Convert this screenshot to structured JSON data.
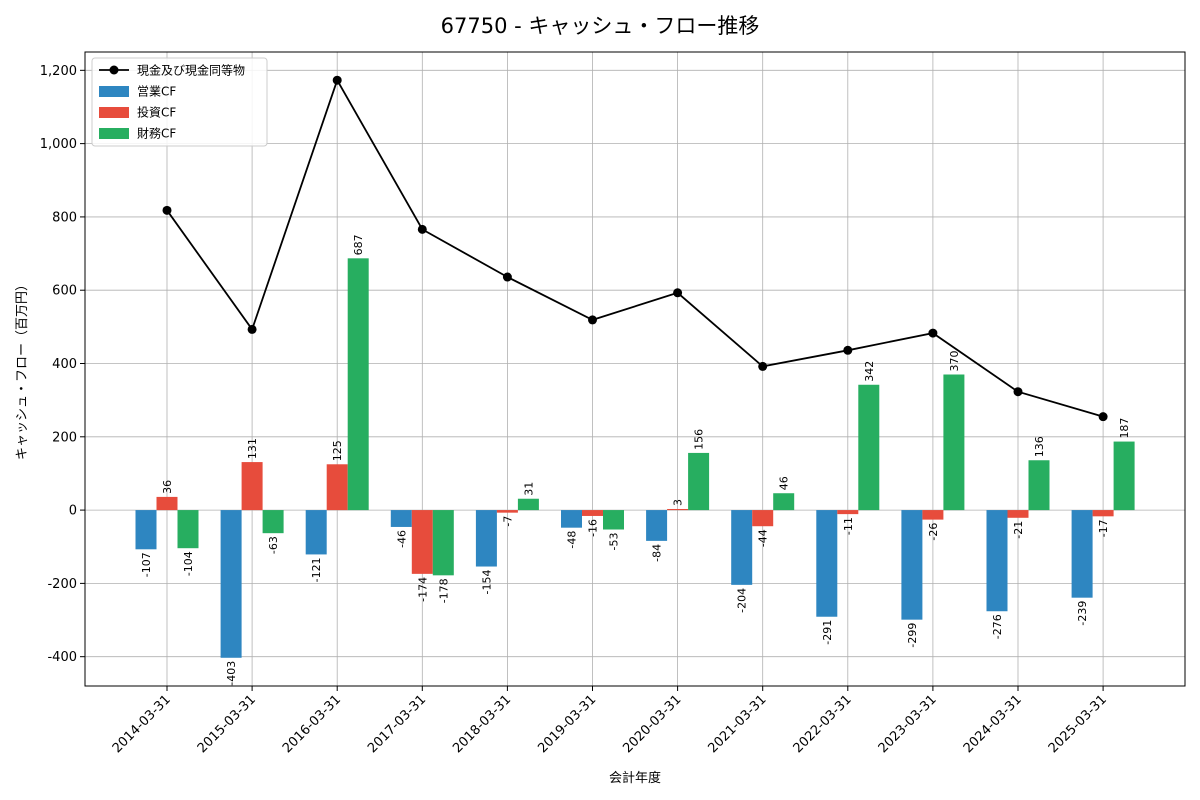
{
  "chart_data": {
    "type": "bar",
    "title": "67750 - キャッシュ・フロー推移",
    "xlabel": "会計年度",
    "ylabel": "キャッシュ・フロー（百万円）",
    "ylim": [
      -480,
      1250
    ],
    "yticks": [
      -400,
      -200,
      0,
      200,
      400,
      600,
      800,
      1000,
      1200
    ],
    "ytick_labels": [
      "-400",
      "-200",
      "0",
      "200",
      "400",
      "600",
      "800",
      "1,000",
      "1,200"
    ],
    "grid": true,
    "legend_position": "top-left",
    "categories": [
      "2014-03-31",
      "2015-03-31",
      "2016-03-31",
      "2017-03-31",
      "2018-03-31",
      "2019-03-31",
      "2020-03-31",
      "2021-03-31",
      "2022-03-31",
      "2023-03-31",
      "2024-03-31",
      "2025-03-31"
    ],
    "series": [
      {
        "name": "営業CF",
        "kind": "bar",
        "color": "#2e86c1",
        "values": [
          -107,
          -403,
          -121,
          -46,
          -154,
          -48,
          -84,
          -204,
          -291,
          -299,
          -276,
          -239
        ]
      },
      {
        "name": "投資CF",
        "kind": "bar",
        "color": "#e74c3c",
        "values": [
          36,
          131,
          125,
          -174,
          -7,
          -16,
          3,
          -44,
          -11,
          -26,
          -21,
          -17
        ]
      },
      {
        "name": "財務CF",
        "kind": "bar",
        "color": "#27ae60",
        "values": [
          -104,
          -63,
          687,
          -178,
          31,
          -53,
          156,
          46,
          342,
          370,
          136,
          187
        ]
      },
      {
        "name": "現金及び現金同等物",
        "kind": "line",
        "color": "#000000",
        "values": [
          818,
          493,
          1173,
          766,
          636,
          519,
          593,
          392,
          436,
          483,
          323,
          255
        ]
      }
    ]
  }
}
